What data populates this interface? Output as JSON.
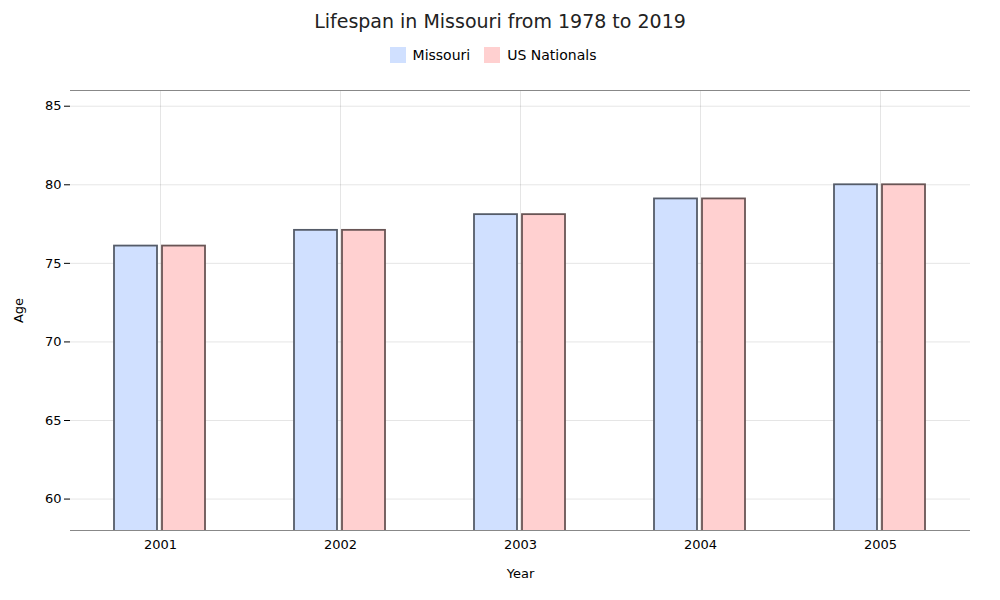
{
  "chart_data": {
    "type": "bar",
    "title": "Lifespan in Missouri from 1978 to 2019",
    "xlabel": "Year",
    "ylabel": "Age",
    "categories": [
      "2001",
      "2002",
      "2003",
      "2004",
      "2005"
    ],
    "series": [
      {
        "name": "Missouri",
        "color": "#d0e0ff",
        "values": [
          76.1,
          77.1,
          78.1,
          79.1,
          80.0
        ]
      },
      {
        "name": "US Nationals",
        "color": "#ffd0d0",
        "values": [
          76.1,
          77.1,
          78.1,
          79.1,
          80.0
        ]
      }
    ],
    "ylim": [
      58,
      86
    ],
    "yticks": [
      60,
      65,
      70,
      75,
      80,
      85
    ],
    "grid": true,
    "legend": "upper center"
  }
}
